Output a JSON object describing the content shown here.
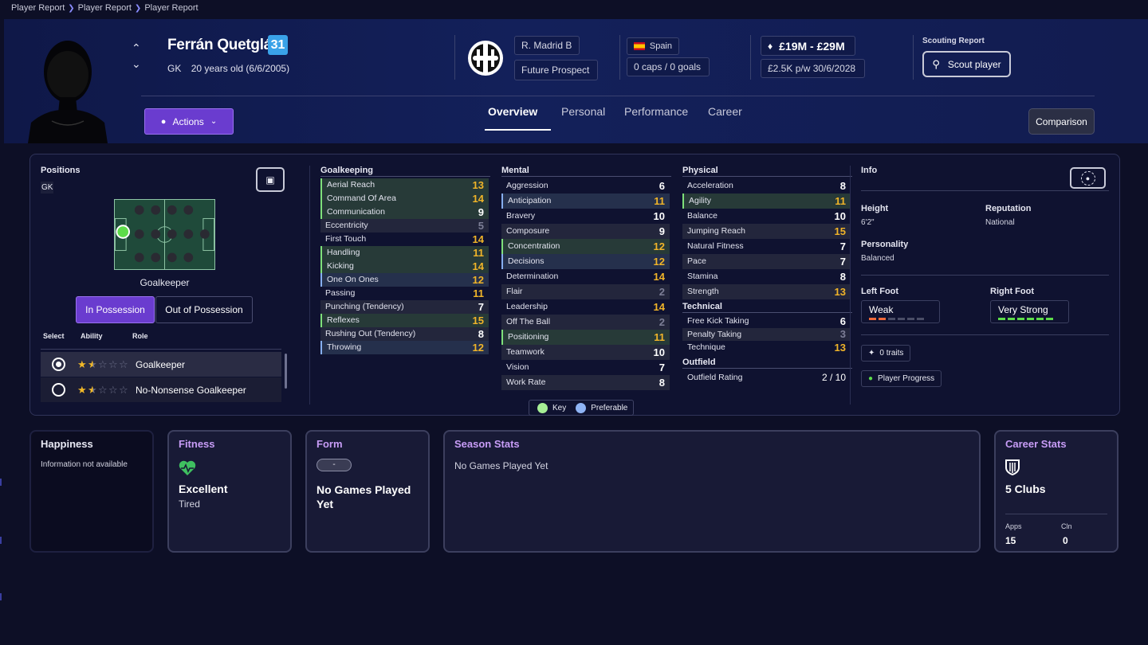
{
  "breadcrumb": [
    "Player Report",
    "Player Report",
    "Player Report"
  ],
  "player": {
    "name": "Ferrán Quetglás",
    "number": "31",
    "position": "GK",
    "age_dob": "20 years old (6/6/2005)",
    "club": "R. Madrid B",
    "status": "Future Prospect",
    "nationality": "Spain",
    "caps": "0 caps / 0 goals",
    "value": "£19M - £29M",
    "contract": "£2.5K p/w  30/6/2028"
  },
  "scouting": {
    "label": "Scouting Report",
    "button": "Scout player"
  },
  "actions_label": "Actions",
  "tabs": [
    "Overview",
    "Personal",
    "Performance",
    "Career"
  ],
  "comparison_label": "Comparison",
  "positions": {
    "title": "Positions",
    "code": "GK",
    "role_name": "Goalkeeper",
    "toggle": [
      "In Possession",
      "Out of Possession"
    ],
    "table_headers": [
      "Select",
      "Ability",
      "Role"
    ],
    "roles": [
      {
        "name": "Goalkeeper",
        "stars": 1.5,
        "selected": true
      },
      {
        "name": "No-Nonsense Goalkeeper",
        "stars": 1.5,
        "selected": false
      }
    ]
  },
  "goalkeeping": {
    "title": "Goalkeeping",
    "rows": [
      {
        "name": "Aerial Reach",
        "value": "13",
        "color": "y",
        "hl": "key"
      },
      {
        "name": "Command Of Area",
        "value": "14",
        "color": "y",
        "hl": "key"
      },
      {
        "name": "Communication",
        "value": "9",
        "color": "w",
        "hl": "key"
      },
      {
        "name": "Eccentricity",
        "value": "5",
        "color": "g",
        "hl": ""
      },
      {
        "name": "First Touch",
        "value": "14",
        "color": "y",
        "hl": ""
      },
      {
        "name": "Handling",
        "value": "11",
        "color": "y",
        "hl": "key"
      },
      {
        "name": "Kicking",
        "value": "14",
        "color": "y",
        "hl": "key"
      },
      {
        "name": "One On Ones",
        "value": "12",
        "color": "y",
        "hl": "pref"
      },
      {
        "name": "Passing",
        "value": "11",
        "color": "y",
        "hl": ""
      },
      {
        "name": "Punching (Tendency)",
        "value": "7",
        "color": "w",
        "hl": ""
      },
      {
        "name": "Reflexes",
        "value": "15",
        "color": "y",
        "hl": "key"
      },
      {
        "name": "Rushing Out (Tendency)",
        "value": "8",
        "color": "w",
        "hl": ""
      },
      {
        "name": "Throwing",
        "value": "12",
        "color": "y",
        "hl": "pref"
      }
    ]
  },
  "mental": {
    "title": "Mental",
    "rows": [
      {
        "name": "Aggression",
        "value": "6",
        "color": "w",
        "hl": ""
      },
      {
        "name": "Anticipation",
        "value": "11",
        "color": "y",
        "hl": "pref"
      },
      {
        "name": "Bravery",
        "value": "10",
        "color": "w",
        "hl": ""
      },
      {
        "name": "Composure",
        "value": "9",
        "color": "w",
        "hl": ""
      },
      {
        "name": "Concentration",
        "value": "12",
        "color": "y",
        "hl": "key"
      },
      {
        "name": "Decisions",
        "value": "12",
        "color": "y",
        "hl": "pref"
      },
      {
        "name": "Determination",
        "value": "14",
        "color": "y",
        "hl": ""
      },
      {
        "name": "Flair",
        "value": "2",
        "color": "g",
        "hl": ""
      },
      {
        "name": "Leadership",
        "value": "14",
        "color": "y",
        "hl": ""
      },
      {
        "name": "Off The Ball",
        "value": "2",
        "color": "g",
        "hl": ""
      },
      {
        "name": "Positioning",
        "value": "11",
        "color": "y",
        "hl": "key"
      },
      {
        "name": "Teamwork",
        "value": "10",
        "color": "w",
        "hl": ""
      },
      {
        "name": "Vision",
        "value": "7",
        "color": "w",
        "hl": ""
      },
      {
        "name": "Work Rate",
        "value": "8",
        "color": "w",
        "hl": ""
      }
    ]
  },
  "physical": {
    "title": "Physical",
    "rows": [
      {
        "name": "Acceleration",
        "value": "8",
        "color": "w",
        "hl": ""
      },
      {
        "name": "Agility",
        "value": "11",
        "color": "y",
        "hl": "key"
      },
      {
        "name": "Balance",
        "value": "10",
        "color": "w",
        "hl": ""
      },
      {
        "name": "Jumping Reach",
        "value": "15",
        "color": "y",
        "hl": ""
      },
      {
        "name": "Natural Fitness",
        "value": "7",
        "color": "w",
        "hl": ""
      },
      {
        "name": "Pace",
        "value": "7",
        "color": "w",
        "hl": ""
      },
      {
        "name": "Stamina",
        "value": "8",
        "color": "w",
        "hl": ""
      },
      {
        "name": "Strength",
        "value": "13",
        "color": "y",
        "hl": ""
      }
    ]
  },
  "technical": {
    "title": "Technical",
    "rows": [
      {
        "name": "Free Kick Taking",
        "value": "6",
        "color": "w",
        "hl": ""
      },
      {
        "name": "Penalty Taking",
        "value": "3",
        "color": "g",
        "hl": ""
      },
      {
        "name": "Technique",
        "value": "13",
        "color": "y",
        "hl": ""
      }
    ]
  },
  "outfield": {
    "title": "Outfield",
    "rows": [
      {
        "name": "Outfield Rating",
        "value": "2 / 10",
        "color": "w",
        "hl": ""
      }
    ]
  },
  "legend": {
    "key": "Key",
    "preferable": "Preferable",
    "key_color": "#a6ef95",
    "pref_color": "#8fb4f5"
  },
  "info": {
    "title": "Info",
    "height_label": "Height",
    "height": "6'2\"",
    "reputation_label": "Reputation",
    "reputation": "National",
    "personality_label": "Personality",
    "personality": "Balanced",
    "left_foot_label": "Left Foot",
    "left_foot": "Weak",
    "left_foot_level": 2,
    "right_foot_label": "Right Foot",
    "right_foot": "Very Strong",
    "right_foot_level": 6,
    "traits": "0 traits",
    "progress": "Player Progress"
  },
  "cards": {
    "happiness": {
      "title": "Happiness",
      "text": "Information not available"
    },
    "fitness": {
      "title": "Fitness",
      "status": "Excellent",
      "sub": "Tired"
    },
    "form": {
      "title": "Form",
      "badge": "-",
      "text": "No Games Played Yet"
    },
    "season": {
      "title": "Season Stats",
      "text": "No Games Played Yet"
    },
    "career": {
      "title": "Career Stats",
      "clubs": "5 Clubs",
      "apps_label": "Apps",
      "apps": "15",
      "cln_label": "Cln",
      "cln": "0"
    }
  },
  "colors": {
    "accent": "#6a3ccf",
    "header": "#13205a",
    "yellow": "#f0b429",
    "key_green": "#7ee07a",
    "pref_blue": "#86aef0",
    "fitness_title": "#c79cf6"
  }
}
